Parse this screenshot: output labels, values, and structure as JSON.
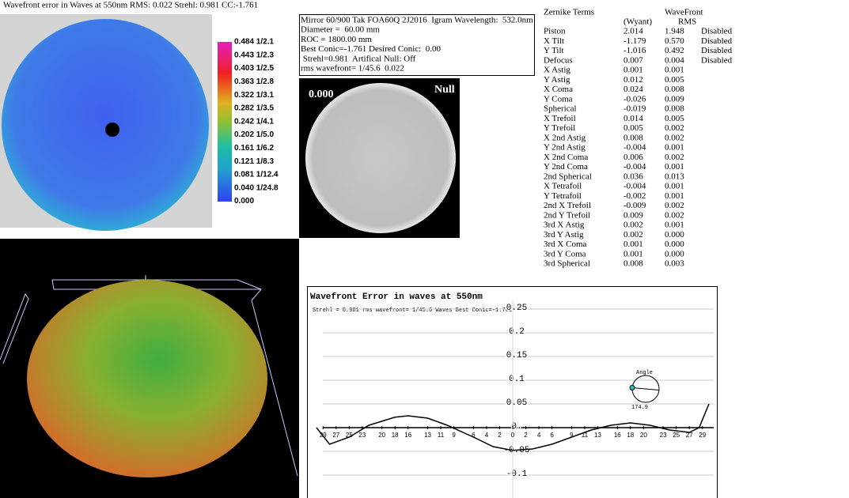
{
  "wavefront_map": {
    "title": "Wavefront error in Waves at 550nm  RMS: 0.022 Strehl: 0.981 CC:-1.761",
    "colorbar_labels": [
      "0.484 1/2.1",
      "0.443 1/2.3",
      "0.403 1/2.5",
      "0.363 1/2.8",
      "0.322 1/3.1",
      "0.282 1/3.5",
      "0.242 1/4.1",
      "0.202 1/5.0",
      "0.161 1/6.2",
      "0.121 1/8.3",
      "0.081 1/12.4",
      "0.040 1/24.8",
      "0.000"
    ]
  },
  "info_box": {
    "lines": [
      "Mirror 60/900 Tak FOA60Q 2J2016  Igram Wavelength:  532.0nm",
      "Diameter =  60.00 mm",
      "ROC = 1800.00 mm",
      "Best Conic=-1.761 Desired Conic:  0.00",
      " Strehl=0.981  Artifical Null: Off",
      "rms wavefront= 1/45.6  0.022"
    ]
  },
  "null_view": {
    "value_label": "0.000",
    "null_label": "Null"
  },
  "zernike_table": {
    "header_name": "Zernike Terms",
    "header_wyant": "(Wyant)",
    "header_wavefront": "WaveFront",
    "header_rms": "RMS",
    "rows": [
      [
        "Piston",
        "2.014",
        "1.948",
        "Disabled"
      ],
      [
        "X Tilt",
        "-1.179",
        "0.570",
        "Disabled"
      ],
      [
        "Y Tilt",
        "-1.016",
        "0.492",
        "Disabled"
      ],
      [
        "Defocus",
        "0.007",
        "0.004",
        "Disabled"
      ],
      [
        "X Astig",
        "0.001",
        "0.001"
      ],
      [
        "Y Astig",
        "0.012",
        "0.005"
      ],
      [
        "X Coma",
        "0.024",
        "0.008"
      ],
      [
        "Y Coma",
        "-0.026",
        "0.009"
      ],
      [
        "Spherical",
        "-0.019",
        "0.008"
      ],
      [
        "X Trefoil",
        "0.014",
        "0.005"
      ],
      [
        "Y Trefoil",
        "0.005",
        "0.002"
      ],
      [
        "X 2nd Astig",
        "0.008",
        "0.002"
      ],
      [
        "Y 2nd Astig",
        "-0.004",
        "0.001"
      ],
      [
        "X 2nd Coma",
        "0.006",
        "0.002"
      ],
      [
        "Y 2nd Coma",
        "-0.004",
        "0.001"
      ],
      [
        "2nd Spherical",
        "0.036",
        "0.013"
      ],
      [
        "X Tetrafoil",
        "-0.004",
        "0.001"
      ],
      [
        "Y Tetrafoil",
        "-0.002",
        "0.001"
      ],
      [
        "2nd X Trefoil",
        "-0.009",
        "0.002"
      ],
      [
        "2nd Y Trefoil",
        "0.009",
        "0.002"
      ],
      [
        "3rd X Astig",
        "0.002",
        "0.001"
      ],
      [
        "3rd Y Astig",
        "0.002",
        "0.000"
      ],
      [
        "3rd X Coma",
        "0.001",
        "0.000"
      ],
      [
        "3rd Y Coma",
        "0.001",
        "0.000"
      ],
      [
        "3rd Spherical",
        "0.008",
        "0.003"
      ]
    ]
  },
  "profile": {
    "title": "Wavefront Error in waves at 550nm",
    "subtitle": "Strehl = 0.981 rms wavefront= 1/45.6 Waves Best Conic=-1.761",
    "ylim": [
      -0.15,
      0.27
    ],
    "yticks": [
      0.25,
      0.2,
      0.15,
      0.1,
      0.05,
      {
        "value": 0,
        "label": "0."
      },
      -0.05,
      -0.1
    ],
    "xlim": [
      -30,
      30
    ],
    "xticks": [
      {
        "value": -29,
        "label": "29"
      },
      {
        "value": -27,
        "label": "27"
      },
      {
        "value": -25,
        "label": "25"
      },
      {
        "value": -23,
        "label": "23"
      },
      {
        "value": -20,
        "label": "20"
      },
      {
        "value": -18,
        "label": "18"
      },
      {
        "value": -16,
        "label": "16"
      },
      {
        "value": -13,
        "label": "13"
      },
      {
        "value": -11,
        "label": "11"
      },
      {
        "value": -9,
        "label": "9"
      },
      {
        "value": -6,
        "label": "6"
      },
      {
        "value": -4,
        "label": "4"
      },
      {
        "value": -2,
        "label": "2"
      },
      0,
      2,
      4,
      6,
      9,
      11,
      13,
      16,
      18,
      20,
      23,
      25,
      27,
      29
    ],
    "x": [
      -30,
      -28,
      -25,
      -22,
      -18,
      -16,
      -13,
      -10,
      -6,
      -3,
      0,
      3,
      6,
      9,
      12,
      15,
      18,
      21,
      24,
      27,
      28.5,
      30
    ],
    "values": [
      0.0,
      -0.035,
      -0.02,
      0.005,
      0.022,
      0.025,
      0.02,
      0.005,
      -0.02,
      -0.04,
      -0.048,
      -0.045,
      -0.035,
      -0.02,
      -0.005,
      0.005,
      0.01,
      0.005,
      -0.005,
      -0.01,
      0.0,
      0.05
    ],
    "color": "#000000",
    "angle_label": "Angle",
    "angle": 174.9
  }
}
